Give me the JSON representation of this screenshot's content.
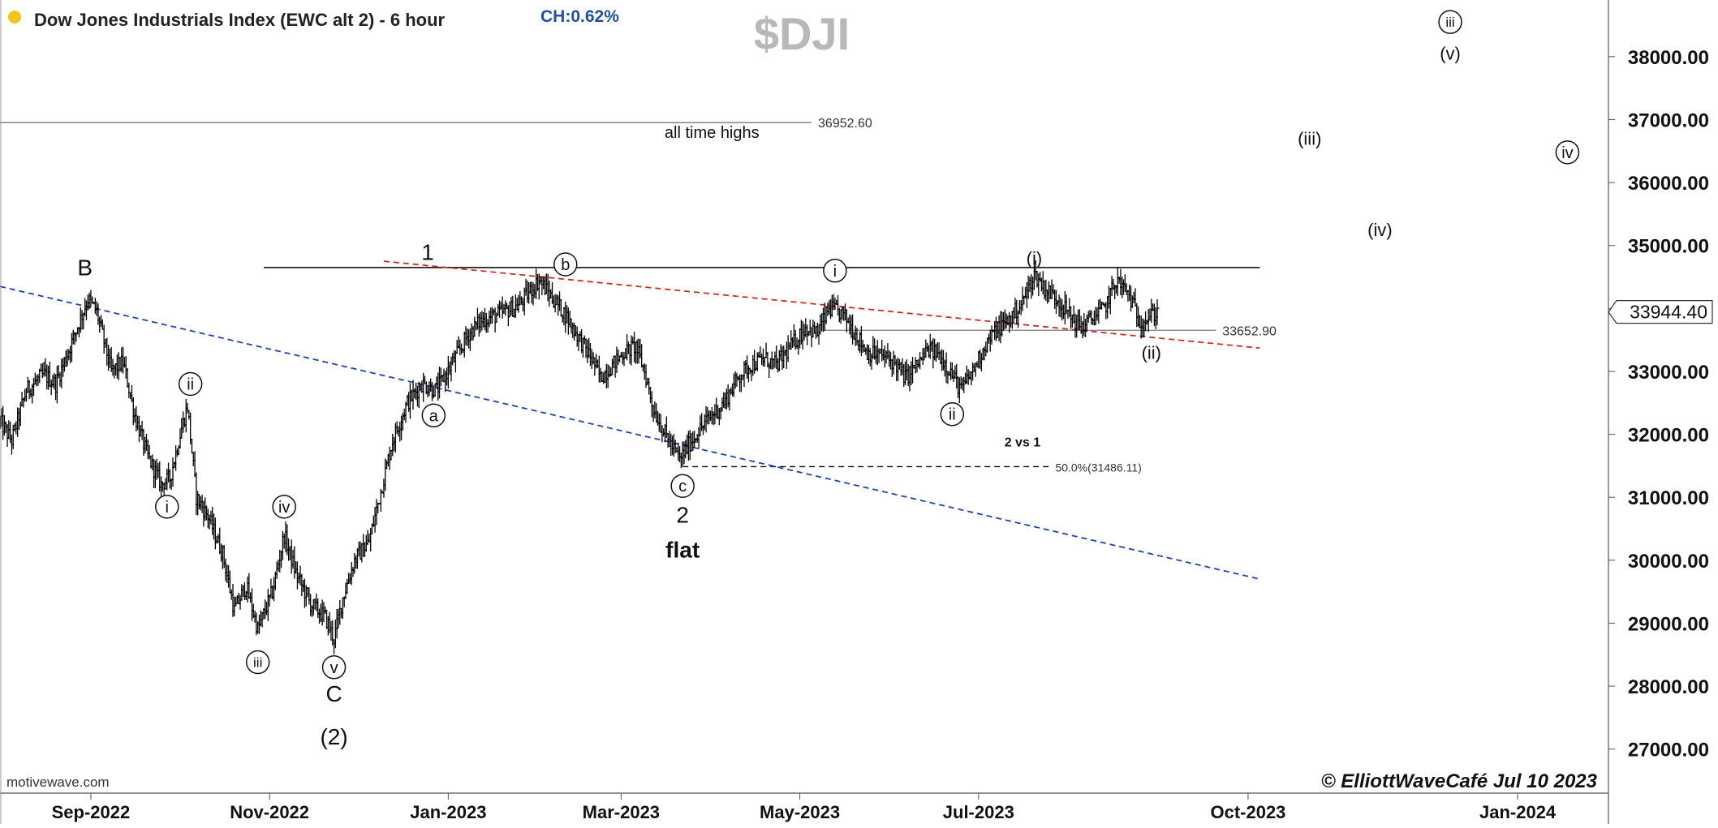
{
  "header": {
    "title": "Dow Jones Industrials Index (EWC alt 2) - 6 hour",
    "change": "CH:0.62%",
    "symbol": "$DJI"
  },
  "footer": {
    "source": "motivewave.com",
    "copyright": "© ElliottWaveCafé Jul 10 2023"
  },
  "colors": {
    "bars": "#000000",
    "resistance_line": "#000000",
    "red_trendline": "#d62728",
    "blue_trendline": "#1f3fbf",
    "change_text": "#1f4fa8",
    "symbol_watermark": "#b8b8b8",
    "title_dot": "#f5c518"
  },
  "chart_data": {
    "type": "ohlc",
    "title": "Dow Jones Industrials Index (EWC alt 2) - 6 hour",
    "x_ticks": [
      "Sep-2022",
      "Nov-2022",
      "Jan-2023",
      "Mar-2023",
      "May-2023",
      "Jul-2023",
      "Oct-2023",
      "Jan-2024"
    ],
    "x_tick_dates": [
      "2022-09-01",
      "2022-11-01",
      "2023-01-01",
      "2023-03-01",
      "2023-05-01",
      "2023-07-01",
      "2023-10-01",
      "2024-01-01"
    ],
    "y_ticks": [
      "27000.00",
      "28000.00",
      "29000.00",
      "30000.00",
      "31000.00",
      "32000.00",
      "33000.00",
      "34000.00",
      "35000.00",
      "36000.00",
      "37000.00",
      "38000.00"
    ],
    "y_tick_values": [
      27000,
      28000,
      29000,
      30000,
      31000,
      32000,
      33000,
      34000,
      35000,
      36000,
      37000,
      38000
    ],
    "xlim": [
      "2022-08-01",
      "2024-02-01"
    ],
    "ylim": [
      26300,
      38900
    ],
    "last_price": "33944.40",
    "last_price_value": 33944.4,
    "price_path": [
      [
        "2022-08-01",
        32200
      ],
      [
        "2022-08-05",
        31900
      ],
      [
        "2022-08-10",
        32700
      ],
      [
        "2022-08-16",
        32950
      ],
      [
        "2022-08-20",
        32800
      ],
      [
        "2022-08-25",
        33400
      ],
      [
        "2022-08-31",
        34150
      ],
      [
        "2022-09-03",
        33950
      ],
      [
        "2022-09-08",
        33000
      ],
      [
        "2022-09-12",
        33150
      ],
      [
        "2022-09-16",
        32300
      ],
      [
        "2022-09-20",
        31700
      ],
      [
        "2022-09-25",
        31200
      ],
      [
        "2022-09-28",
        31300
      ],
      [
        "2022-10-02",
        32100
      ],
      [
        "2022-10-04",
        32450
      ],
      [
        "2022-10-07",
        31000
      ],
      [
        "2022-10-11",
        30700
      ],
      [
        "2022-10-16",
        30100
      ],
      [
        "2022-10-20",
        29200
      ],
      [
        "2022-10-24",
        29600
      ],
      [
        "2022-10-28",
        28900
      ],
      [
        "2022-11-02",
        29500
      ],
      [
        "2022-11-06",
        30400
      ],
      [
        "2022-11-10",
        29800
      ],
      [
        "2022-11-15",
        29300
      ],
      [
        "2022-11-20",
        29100
      ],
      [
        "2022-11-23",
        28750
      ],
      [
        "2022-11-26",
        29400
      ],
      [
        "2022-11-30",
        30000
      ],
      [
        "2022-12-05",
        30300
      ],
      [
        "2022-12-09",
        31100
      ],
      [
        "2022-12-13",
        31900
      ],
      [
        "2022-12-18",
        32500
      ],
      [
        "2022-12-23",
        32800
      ],
      [
        "2022-12-28",
        32700
      ],
      [
        "2023-01-02",
        33100
      ],
      [
        "2023-01-08",
        33600
      ],
      [
        "2023-01-12",
        33800
      ],
      [
        "2023-01-18",
        33900
      ],
      [
        "2023-01-25",
        34050
      ],
      [
        "2023-02-01",
        34450
      ],
      [
        "2023-02-05",
        34200
      ],
      [
        "2023-02-10",
        33900
      ],
      [
        "2023-02-15",
        33500
      ],
      [
        "2023-02-19",
        33200
      ],
      [
        "2023-02-22",
        32900
      ],
      [
        "2023-02-26",
        33100
      ],
      [
        "2023-03-02",
        33300
      ],
      [
        "2023-03-06",
        33400
      ],
      [
        "2023-03-09",
        33000
      ],
      [
        "2023-03-12",
        32400
      ],
      [
        "2023-03-16",
        32000
      ],
      [
        "2023-03-21",
        31600
      ],
      [
        "2023-03-25",
        31900
      ],
      [
        "2023-03-30",
        32200
      ],
      [
        "2023-04-05",
        32500
      ],
      [
        "2023-04-10",
        32900
      ],
      [
        "2023-04-14",
        33100
      ],
      [
        "2023-04-19",
        33200
      ],
      [
        "2023-04-23",
        33100
      ],
      [
        "2023-04-28",
        33400
      ],
      [
        "2023-05-03",
        33700
      ],
      [
        "2023-05-07",
        33600
      ],
      [
        "2023-05-11",
        34000
      ],
      [
        "2023-05-16",
        33900
      ],
      [
        "2023-05-20",
        33600
      ],
      [
        "2023-05-24",
        33300
      ],
      [
        "2023-05-29",
        33250
      ],
      [
        "2023-06-02",
        33150
      ],
      [
        "2023-06-06",
        32900
      ],
      [
        "2023-06-10",
        33100
      ],
      [
        "2023-06-14",
        33350
      ],
      [
        "2023-06-18",
        33250
      ],
      [
        "2023-06-22",
        32950
      ],
      [
        "2023-06-25",
        32700
      ],
      [
        "2023-06-29",
        33000
      ],
      [
        "2023-07-03",
        33400
      ],
      [
        "2023-07-07",
        33650
      ],
      [
        "2023-07-12",
        33850
      ],
      [
        "2023-07-16",
        34100
      ],
      [
        "2023-07-20",
        34550
      ],
      [
        "2023-07-24",
        34300
      ],
      [
        "2023-07-28",
        34150
      ],
      [
        "2023-08-01",
        33900
      ],
      [
        "2023-08-05",
        33700
      ],
      [
        "2023-08-09",
        33850
      ],
      [
        "2023-08-13",
        34000
      ],
      [
        "2023-08-17",
        34450
      ],
      [
        "2023-08-21",
        34250
      ],
      [
        "2023-08-25",
        33800
      ],
      [
        "2023-08-28",
        33850
      ],
      [
        "2023-08-31",
        33950
      ]
    ],
    "lines": [
      {
        "kind": "horizontal",
        "label": "36952.60",
        "y": 36952.6,
        "x_start": "2022-08-01",
        "x_end": "2023-05-05",
        "style": "solid",
        "color": "#777777"
      },
      {
        "kind": "horizontal",
        "label": "",
        "y": 34650,
        "x_start": "2022-10-30",
        "x_end": "2023-10-05",
        "style": "solid",
        "color": "#000000"
      },
      {
        "kind": "horizontal",
        "label": "33652.90",
        "y": 33652.9,
        "x_start": "2023-05-09",
        "x_end": "2023-09-20",
        "style": "solid",
        "color": "#888888"
      },
      {
        "kind": "horizontal",
        "label": "50.0%(31486.11)",
        "y": 31486.11,
        "x_start": "2023-03-22",
        "x_end": "2023-07-25",
        "style": "dashed",
        "color": "#000000"
      },
      {
        "kind": "trend",
        "label": "",
        "points": [
          [
            "2022-12-10",
            34750
          ],
          [
            "2023-10-05",
            33370
          ]
        ],
        "style": "dashed",
        "color": "#d62728"
      },
      {
        "kind": "trend",
        "label": "",
        "points": [
          [
            "2022-08-01",
            34350
          ],
          [
            "2023-10-05",
            29700
          ]
        ],
        "style": "dashed",
        "color": "#1f3fbf"
      }
    ],
    "annotations": [
      {
        "text": "B",
        "x": "2022-08-30",
        "y": 34650,
        "circled": false,
        "size": "large"
      },
      {
        "text": "ii",
        "x": "2022-10-05",
        "y": 32800,
        "circled": true
      },
      {
        "text": "i",
        "x": "2022-09-27",
        "y": 30850,
        "circled": true
      },
      {
        "text": "iv",
        "x": "2022-11-06",
        "y": 30850,
        "circled": true
      },
      {
        "text": "iii",
        "x": "2022-10-28",
        "y": 28380,
        "circled": true
      },
      {
        "text": "v",
        "x": "2022-11-23",
        "y": 28300,
        "circled": true
      },
      {
        "text": "C",
        "x": "2022-11-23",
        "y": 27880,
        "circled": false,
        "size": "large"
      },
      {
        "text": "(2)",
        "x": "2022-11-23",
        "y": 27200,
        "circled": false,
        "size": "large"
      },
      {
        "text": "1",
        "x": "2022-12-25",
        "y": 34900,
        "circled": false,
        "size": "large"
      },
      {
        "text": "a",
        "x": "2022-12-27",
        "y": 32300,
        "circled": true
      },
      {
        "text": "b",
        "x": "2023-02-10",
        "y": 34700,
        "circled": true
      },
      {
        "text": "c",
        "x": "2023-03-22",
        "y": 31180,
        "circled": true
      },
      {
        "text": "2",
        "x": "2023-03-22",
        "y": 30720,
        "circled": false,
        "size": "large"
      },
      {
        "text": "flat",
        "x": "2023-03-22",
        "y": 30170,
        "circled": false,
        "size": "large",
        "bold": true
      },
      {
        "text": "i",
        "x": "2023-05-13",
        "y": 34600,
        "circled": true
      },
      {
        "text": "ii",
        "x": "2023-06-22",
        "y": 32320,
        "circled": true
      },
      {
        "text": "(i)",
        "x": "2023-07-20",
        "y": 34800,
        "circled": false
      },
      {
        "text": "(ii)",
        "x": "2023-08-29",
        "y": 33300,
        "circled": false
      },
      {
        "text": "2 vs 1",
        "x": "2023-07-16",
        "y": 31880,
        "circled": false,
        "bold": true,
        "size": "small"
      },
      {
        "text": "all time highs",
        "x": "2023-04-01",
        "y": 36800,
        "circled": false
      },
      {
        "text": "(iii)",
        "x": "2023-10-22",
        "y": 36700,
        "circled": false
      },
      {
        "text": "(iv)",
        "x": "2023-11-15",
        "y": 35250,
        "circled": false
      },
      {
        "text": "iii",
        "x": "2023-12-09",
        "y": 38550,
        "circled": true
      },
      {
        "text": "(v)",
        "x": "2023-12-09",
        "y": 38050,
        "circled": false
      },
      {
        "text": "iv",
        "x": "2024-01-18",
        "y": 36480,
        "circled": true
      }
    ]
  }
}
